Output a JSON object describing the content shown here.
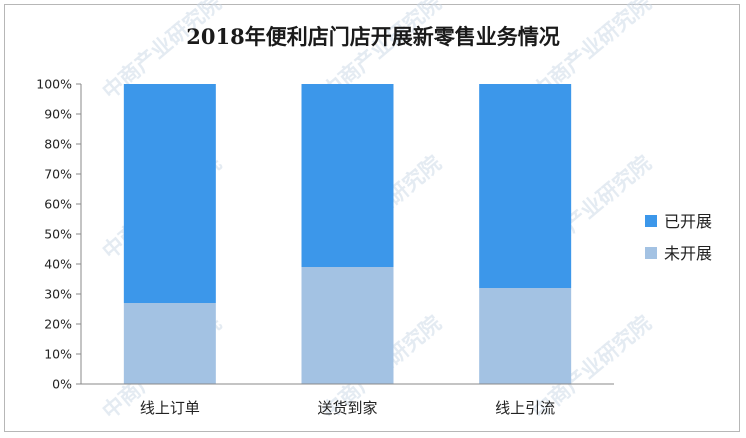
{
  "chart_data": {
    "type": "bar",
    "stacked": true,
    "title": "2018年便利店门店开展新零售业务情况",
    "categories": [
      "线上订单",
      "送货到家",
      "线上引流"
    ],
    "series": [
      {
        "name": "未开展",
        "values": [
          27,
          39,
          32
        ],
        "color": "#a3c2e3"
      },
      {
        "name": "已开展",
        "values": [
          73,
          61,
          68
        ],
        "color": "#3c97ea"
      }
    ],
    "y_ticks": [
      "0%",
      "10%",
      "20%",
      "30%",
      "40%",
      "50%",
      "60%",
      "70%",
      "80%",
      "90%",
      "100%"
    ],
    "ylim": [
      0,
      100
    ],
    "legend_position": "right",
    "grid": false
  },
  "watermark": "中商产业研究院"
}
